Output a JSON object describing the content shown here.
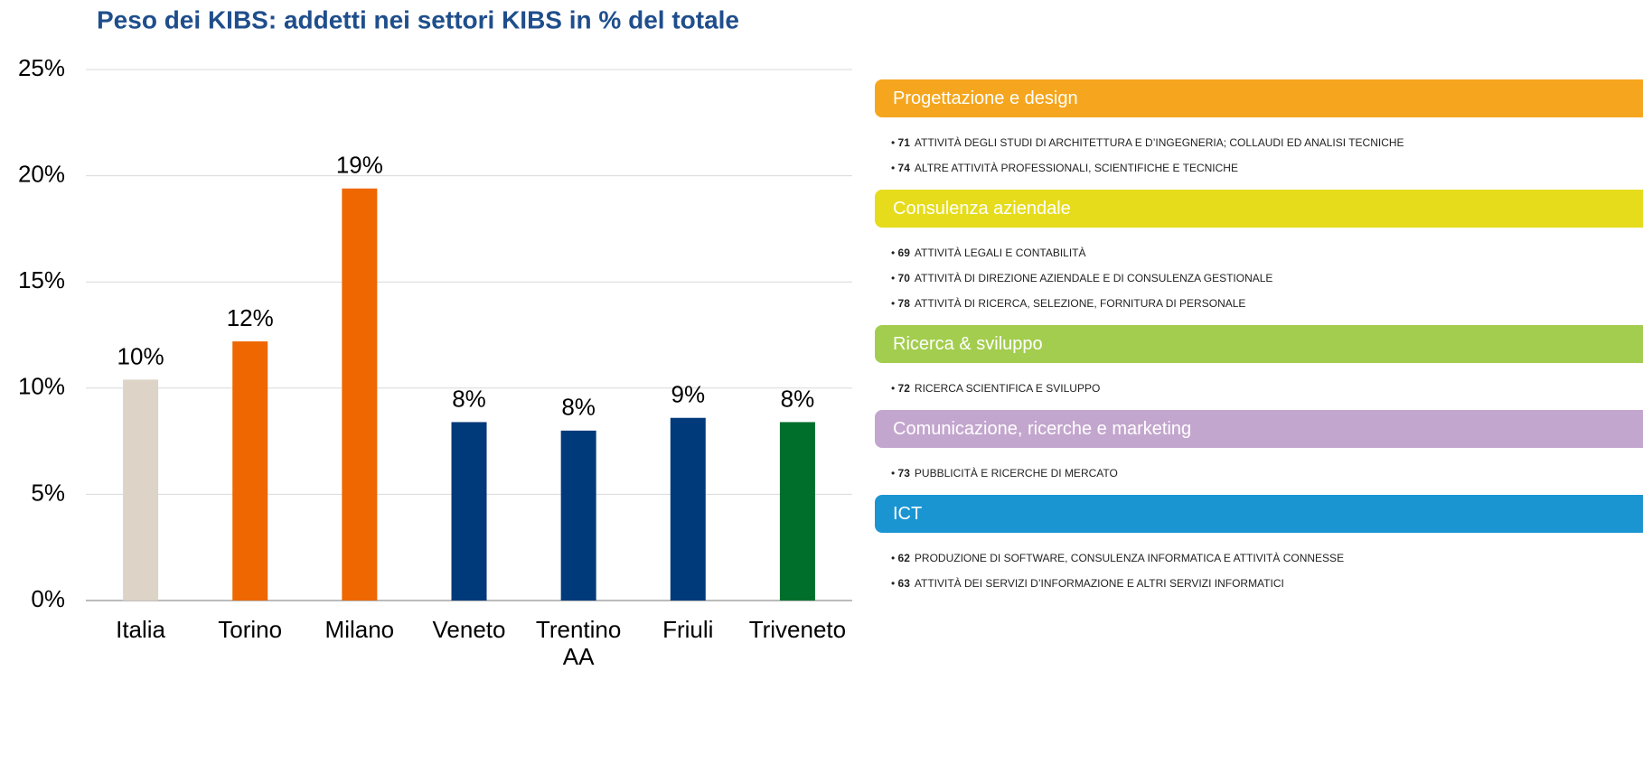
{
  "chart_data": {
    "type": "bar",
    "title": "Peso dei KIBS: addetti nei settori KIBS in % del totale",
    "categories": [
      "Italia",
      "Torino",
      "Milano",
      "Veneto",
      "Trentino AA",
      "Friuli",
      "Triveneto"
    ],
    "values": [
      10.4,
      12.2,
      19.4,
      8.4,
      8.0,
      8.6,
      8.4
    ],
    "value_labels": [
      "10%",
      "12%",
      "19%",
      "8%",
      "8%",
      "9%",
      "8%"
    ],
    "colors": [
      "#ddd3c6",
      "#ee6700",
      "#ee6700",
      "#003a7a",
      "#003a7a",
      "#003a7a",
      "#006f2c"
    ],
    "ylim": [
      0,
      25
    ],
    "yticks": [
      {
        "value": 0,
        "label": "0%"
      },
      {
        "value": 5,
        "label": "5%"
      },
      {
        "value": 10,
        "label": "10%"
      },
      {
        "value": 15,
        "label": "15%"
      },
      {
        "value": 20,
        "label": "20%"
      },
      {
        "value": 25,
        "label": "25%"
      }
    ],
    "grid": true
  },
  "panel": {
    "sections": [
      {
        "title": "Progettazione e design",
        "color": "#f5a61e",
        "items": [
          {
            "code": "71",
            "text": "ATTIVITÀ DEGLI STUDI DI ARCHITETTURA E D’INGEGNERIA; COLLAUDI ED ANALISI TECNICHE"
          },
          {
            "code": "74",
            "text": "ALTRE ATTIVITÀ PROFESSIONALI, SCIENTIFICHE E TECNICHE"
          }
        ]
      },
      {
        "title": "Consulenza aziendale",
        "color": "#e6dc1c",
        "items": [
          {
            "code": "69",
            "text": "ATTIVITÀ LEGALI E CONTABILITÀ"
          },
          {
            "code": "70",
            "text": "ATTIVITÀ DI DIREZIONE AZIENDALE E DI CONSULENZA GESTIONALE"
          },
          {
            "code": "78",
            "text": "ATTIVITÀ DI RICERCA, SELEZIONE, FORNITURA DI PERSONALE"
          }
        ]
      },
      {
        "title": "Ricerca & sviluppo",
        "color": "#a3cd4f",
        "items": [
          {
            "code": "72",
            "text": "RICERCA SCIENTIFICA E SVILUPPO"
          }
        ]
      },
      {
        "title": "Comunicazione, ricerche e marketing",
        "color": "#c3a6ce",
        "items": [
          {
            "code": "73",
            "text": "PUBBLICITÀ E RICERCHE DI MERCATO"
          }
        ]
      },
      {
        "title": "ICT",
        "color": "#1a95d2",
        "items": [
          {
            "code": "62",
            "text": "PRODUZIONE DI SOFTWARE, CONSULENZA INFORMATICA E ATTIVITÀ CONNESSE"
          },
          {
            "code": "63",
            "text": "ATTIVITÀ DEI SERVIZI D’INFORMAZIONE E ALTRI SERVIZI INFORMATICI"
          }
        ]
      }
    ]
  }
}
